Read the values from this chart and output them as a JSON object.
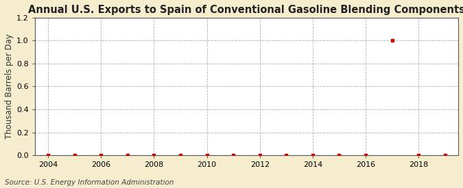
{
  "title": "Annual U.S. Exports to Spain of Conventional Gasoline Blending Components",
  "ylabel": "Thousand Barrels per Day",
  "source": "Source: U.S. Energy Information Administration",
  "background_color": "#f5edce",
  "plot_background_color": "#ffffff",
  "x_years": [
    2004,
    2005,
    2006,
    2007,
    2008,
    2009,
    2010,
    2011,
    2012,
    2013,
    2014,
    2015,
    2016,
    2017,
    2018,
    2019
  ],
  "y_values": [
    0.0,
    0.0,
    0.0,
    0.0,
    0.0,
    0.0,
    0.0,
    0.0,
    0.0,
    0.0,
    0.0,
    0.0,
    0.0,
    1.0,
    0.0,
    0.0
  ],
  "marker_color": "#cc0000",
  "marker_size": 3.5,
  "xlim": [
    2003.5,
    2019.5
  ],
  "ylim": [
    0.0,
    1.2
  ],
  "yticks": [
    0.0,
    0.2,
    0.4,
    0.6,
    0.8,
    1.0,
    1.2
  ],
  "xticks": [
    2004,
    2006,
    2008,
    2010,
    2012,
    2014,
    2016,
    2018
  ],
  "grid_color": "#b0b0b0",
  "grid_linestyle": "--",
  "title_fontsize": 10.5,
  "label_fontsize": 8.5,
  "tick_fontsize": 8,
  "source_fontsize": 7.5
}
